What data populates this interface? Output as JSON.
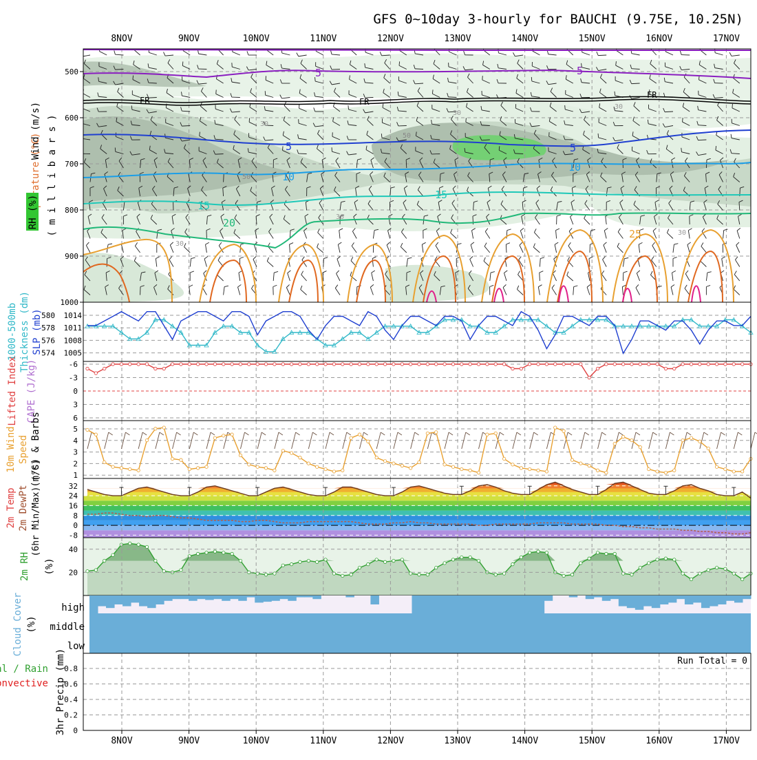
{
  "title": "GFS 0~10day 3-hourly for BAUCHI (9.75E, 10.25N)",
  "dates": [
    "8NOV",
    "9NOV",
    "10NOV",
    "11NOV",
    "12NOV",
    "13NOV",
    "14NOV",
    "15NOV",
    "16NOV",
    "17NOV"
  ],
  "colors": {
    "grid": "#9a9a9a",
    "purple": "#8a1ec0",
    "blue": "#1f3fd0",
    "lightblue": "#1a9ee8",
    "teal": "#1ec8b8",
    "green": "#20b878",
    "orange": "#e8a030",
    "darkorange": "#e06820",
    "magenta": "#e0208a",
    "cyan_line": "#30b8c8",
    "slp_line": "#1f3fd0",
    "wind_line": "#e8a030",
    "rh_line": "#30a030",
    "cloud": "#6aaed8",
    "cloud_bg": "#f4eef8",
    "cape_red": "#e04040",
    "precip_green": "#30a030",
    "precip_red": "#e02020"
  },
  "panels": {
    "upper": {
      "ylabel_wind": "Wind (m/s)",
      "ylabel_temp": "Temperature (°C)",
      "ylabel_rh": "RH (%)",
      "ylabel_mb": "( m i l l i b a r s )",
      "yticks": [
        "500",
        "600",
        "700",
        "800",
        "900",
        "1000"
      ],
      "contour_labels": {
        "purple5a": "5",
        "purple5b": "5",
        "fr1": "FR",
        "fr2": "FR",
        "fr3": "FR",
        "blue5a": "5",
        "blue5b": "5",
        "lb10a": "10",
        "lb10b": "10",
        "teal15a": "15",
        "teal15b": "15",
        "green20": "20",
        "orange25": "25",
        "rh30a": "30",
        "rh30b": "30",
        "rh30c": "30",
        "rh30d": "30",
        "rh30e": "30",
        "rh30f": "30",
        "rh50a": "50",
        "rh50b": "50"
      }
    },
    "thick": {
      "ylabel_a": "1000-500mb",
      "ylabel_b": "Thickness (dm)",
      "ylabel_c": "SLP (mb)",
      "left_ticks": [
        "580",
        "578",
        "576",
        "574"
      ],
      "right_ticks": [
        "1014",
        "1011",
        "1008",
        "1005"
      ]
    },
    "cape": {
      "ylabel_a": "Lifted Index",
      "ylabel_b": "CAPE (J/kg)",
      "ticks": [
        "-6",
        "-3",
        "0",
        "3",
        "6"
      ]
    },
    "wind10": {
      "ylabel_a": "10m Wind",
      "ylabel_b": "Speed",
      "ylabel_c": "(m/s) & Barbs",
      "ticks": [
        "5",
        "4",
        "3",
        "2",
        "1"
      ]
    },
    "temp2m": {
      "ylabel_a": "2m Temp",
      "ylabel_b": "2m DewPt",
      "ylabel_c": "(6hr Min/Max) (°C)",
      "ticks": [
        "32",
        "24",
        "16",
        "8",
        "0",
        "-8"
      ]
    },
    "rh2m": {
      "ylabel_a": "2m RH",
      "ylabel_b": "(%)",
      "ticks": [
        "40",
        "20"
      ]
    },
    "cloud": {
      "ylabel_a": "Cloud Cover",
      "ylabel_b": "(%)",
      "levels": [
        "high",
        "middle",
        "low"
      ]
    },
    "precip": {
      "ylabel_a": "Total / Rain",
      "ylabel_b": "Convective",
      "ylabel_c": "3hr Precip (mm)",
      "run_total": "Run Total = 0",
      "ticks": [
        "0.8",
        "0.6",
        "0.4",
        "0.2",
        "0"
      ]
    }
  },
  "chart_data": {
    "type": "line",
    "x_start": "7NOV 12Z",
    "x_step_hours": 3,
    "x_count": 79,
    "series": [
      {
        "name": "SLP (mb)",
        "ylim": [
          1004,
          1015
        ],
        "values": [
          1011,
          1011,
          1012,
          1013,
          1014,
          1013,
          1012,
          1014,
          1014,
          1011,
          1008,
          1012,
          1013,
          1014,
          1014,
          1013,
          1012,
          1014,
          1014,
          1013,
          1009,
          1012,
          1013,
          1014,
          1014,
          1013,
          1010,
          1008,
          1011,
          1013,
          1013,
          1012,
          1011,
          1014,
          1013,
          1010,
          1008,
          1011,
          1013,
          1013,
          1012,
          1011,
          1013,
          1013,
          1012,
          1008,
          1011,
          1013,
          1013,
          1012,
          1011,
          1014,
          1013,
          1010,
          1006,
          1009,
          1013,
          1013,
          1012,
          1011,
          1013,
          1013,
          1011,
          1005,
          1008,
          1012,
          1012,
          1011,
          1010,
          1012,
          1012,
          1010,
          1007,
          1010,
          1012,
          1012,
          1011,
          1011,
          1013
        ]
      },
      {
        "name": "1000-500mb Thickness (dm)",
        "ylim": [
          573,
          581
        ],
        "values": [
          578,
          578,
          578,
          578,
          577,
          576,
          576,
          577,
          579,
          579,
          578,
          577,
          575,
          575,
          575,
          577,
          578,
          578,
          577,
          577,
          575,
          574,
          574,
          576,
          577,
          577,
          577,
          576,
          575,
          575,
          576,
          577,
          577,
          576,
          577,
          578,
          578,
          578,
          578,
          577,
          577,
          578,
          579,
          579,
          579,
          578,
          578,
          577,
          577,
          578,
          579,
          579,
          579,
          579,
          578,
          577,
          577,
          578,
          579,
          579,
          579,
          579,
          578,
          578,
          578,
          578,
          578,
          578,
          578,
          578,
          579,
          579,
          578,
          578,
          578,
          579,
          579,
          578,
          577
        ]
      },
      {
        "name": "Lifted Index",
        "ylim": [
          -6,
          6
        ],
        "values": [
          5,
          4,
          5,
          6,
          6,
          6,
          6,
          6,
          5,
          5,
          6,
          6,
          6,
          6,
          6,
          6,
          6,
          6,
          6,
          6,
          6,
          6,
          6,
          6,
          6,
          6,
          6,
          6,
          6,
          6,
          6,
          6,
          6,
          6,
          6,
          6,
          6,
          6,
          6,
          6,
          6,
          6,
          6,
          6,
          6,
          6,
          6,
          6,
          6,
          6,
          5,
          5,
          6,
          6,
          6,
          6,
          6,
          6,
          6,
          3,
          5,
          6,
          6,
          6,
          6,
          6,
          6,
          6,
          5,
          5,
          6,
          6,
          6,
          6,
          6,
          6,
          6,
          6,
          6
        ]
      },
      {
        "name": "10m Wind Speed (m/s)",
        "ylim": [
          0.8,
          5.8
        ],
        "values": [
          5,
          4.6,
          2.2,
          1.8,
          1.7,
          1.6,
          1.5,
          4.1,
          5.1,
          5.2,
          2.5,
          2.4,
          1.6,
          1.7,
          1.8,
          4.3,
          4.5,
          4.6,
          2.8,
          2.0,
          1.8,
          1.7,
          1.5,
          3.2,
          3.0,
          2.6,
          2.1,
          1.8,
          1.6,
          1.4,
          1.5,
          4.3,
          4.6,
          4.0,
          2.6,
          2.3,
          2.1,
          1.9,
          1.7,
          2.2,
          4.7,
          4.8,
          2.0,
          1.8,
          1.6,
          1.5,
          1.3,
          4.6,
          4.7,
          2.5,
          2.0,
          1.7,
          1.6,
          1.5,
          1.4,
          5.2,
          4.9,
          2.4,
          2.1,
          1.9,
          1.5,
          1.3,
          3.8,
          4.4,
          4.1,
          3.5,
          1.6,
          1.4,
          1.3,
          1.5,
          4.1,
          4.3,
          4.0,
          3.4,
          1.8,
          1.6,
          1.4,
          1.4,
          2.5
        ]
      },
      {
        "name": "2m Temp (°C)",
        "ylim": [
          -10,
          38
        ],
        "values": [
          29,
          27,
          25,
          24,
          24,
          27,
          30,
          31,
          29,
          27,
          25,
          24,
          24,
          27,
          31,
          32,
          30,
          28,
          26,
          24,
          24,
          27,
          30,
          31,
          29,
          27,
          25,
          24,
          24,
          27,
          31,
          31,
          29,
          27,
          25,
          24,
          24,
          27,
          31,
          32,
          30,
          28,
          26,
          25,
          25,
          28,
          32,
          33,
          31,
          28,
          26,
          25,
          25,
          29,
          33,
          35,
          32,
          29,
          27,
          25,
          25,
          29,
          34,
          35,
          32,
          29,
          26,
          25,
          25,
          28,
          32,
          33,
          30,
          28,
          25,
          24,
          24,
          27,
          22
        ]
      },
      {
        "name": "2m DewPt (°C)",
        "ylim": [
          -10,
          38
        ],
        "values": [
          9,
          9,
          10,
          10,
          9,
          8,
          8,
          7,
          8,
          8,
          7,
          6,
          6,
          5,
          4,
          4,
          4,
          4,
          3,
          3,
          4,
          4,
          3,
          2,
          2,
          2,
          3,
          3,
          3,
          3,
          3,
          3,
          2,
          1,
          1,
          1,
          2,
          2,
          3,
          2,
          2,
          1,
          1,
          1,
          1,
          1,
          0,
          0,
          1,
          1,
          1,
          1,
          1,
          2,
          2,
          2,
          2,
          1,
          1,
          1,
          1,
          0,
          0,
          -1,
          -1,
          -2,
          -2,
          -3,
          -3,
          -3,
          -4,
          -4,
          -5,
          -5,
          -6,
          -6,
          -7,
          -7,
          -6
        ]
      },
      {
        "name": "2m RH (%)",
        "ylim": [
          0,
          50
        ],
        "values": [
          21,
          22,
          30,
          35,
          44,
          45,
          44,
          42,
          30,
          21,
          20,
          22,
          34,
          36,
          37,
          38,
          37,
          36,
          30,
          20,
          19,
          18,
          19,
          26,
          27,
          29,
          30,
          29,
          31,
          19,
          17,
          18,
          24,
          27,
          31,
          29,
          30,
          31,
          19,
          18,
          18,
          24,
          28,
          31,
          33,
          33,
          30,
          20,
          18,
          19,
          27,
          33,
          37,
          38,
          37,
          20,
          17,
          18,
          28,
          32,
          37,
          36,
          36,
          19,
          18,
          24,
          28,
          31,
          32,
          31,
          19,
          14,
          19,
          22,
          24,
          23,
          19,
          14,
          19
        ]
      }
    ]
  }
}
